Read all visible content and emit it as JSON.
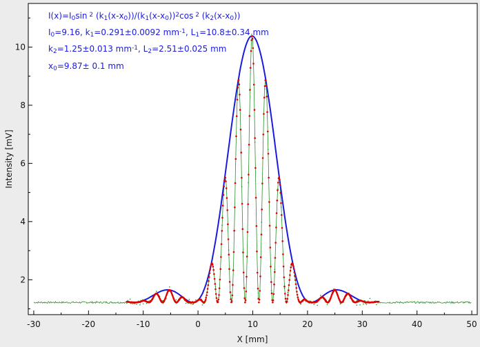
{
  "chart_data": {
    "type": "scatter",
    "xlabel": "X [mm]",
    "ylabel": "Intensity [mV]",
    "xlim": [
      -31,
      51
    ],
    "ylim": [
      0.8,
      11.5
    ],
    "xticks": [
      -30,
      -20,
      -10,
      0,
      10,
      20,
      30,
      40,
      50
    ],
    "xtick_labels": [
      "-30",
      "-20",
      "-10",
      "0",
      "10",
      "20",
      "30",
      "40",
      "50"
    ],
    "yticks": [
      2,
      4,
      6,
      8,
      10
    ],
    "ytick_labels": [
      "2",
      "4",
      "6",
      "8",
      "10"
    ],
    "grid": false,
    "colors": {
      "fit": "#1a1adc",
      "measured": "#e00000",
      "background": "#2a8a2a",
      "annotation": "#1a1adc"
    },
    "annotation": {
      "line1": [
        {
          "t": "I(x)=I"
        },
        {
          "t": "0",
          "sub": true
        },
        {
          "t": "sin"
        },
        {
          "t": " 2",
          "sup": true
        },
        {
          "t": " (k"
        },
        {
          "t": "1",
          "sub": true
        },
        {
          "t": "(x-x"
        },
        {
          "t": "0",
          "sub": true
        },
        {
          "t": "))/(k"
        },
        {
          "t": "1",
          "sub": true
        },
        {
          "t": "(x-x"
        },
        {
          "t": "0",
          "sub": true
        },
        {
          "t": "))"
        },
        {
          "t": "2",
          "sup": true
        },
        {
          "t": "cos"
        },
        {
          "t": " 2",
          "sup": true
        },
        {
          "t": " (k"
        },
        {
          "t": "2",
          "sub": true
        },
        {
          "t": "(x-x"
        },
        {
          "t": "0",
          "sub": true
        },
        {
          "t": "))"
        }
      ],
      "line2": [
        {
          "t": "I"
        },
        {
          "t": "0",
          "sub": true
        },
        {
          "t": "=9.16,  k"
        },
        {
          "t": "1",
          "sub": true
        },
        {
          "t": "=0.291±0.0092 mm"
        },
        {
          "t": "-1",
          "sup": true
        },
        {
          "t": ",   L"
        },
        {
          "t": "1",
          "sub": true
        },
        {
          "t": "=10.8±0.34 mm"
        }
      ],
      "line3": [
        {
          "t": "k"
        },
        {
          "t": "2",
          "sub": true
        },
        {
          "t": "=1.25±0.013 mm"
        },
        {
          "t": "-1",
          "sup": true
        },
        {
          "t": ",   L"
        },
        {
          "t": "2",
          "sub": true
        },
        {
          "t": "=2.51±0.025 mm"
        }
      ],
      "line4": [
        {
          "t": "x"
        },
        {
          "t": "0",
          "sub": true
        },
        {
          "t": "=9.87±  0.1 mm"
        }
      ]
    },
    "model": {
      "I0": 9.16,
      "k1": 0.291,
      "k2": 1.25,
      "x0": 9.87,
      "offset": 1.22
    },
    "series": [
      {
        "role": "background-measurement",
        "x_range": [
          -30,
          50
        ],
        "baseline": 1.22
      },
      {
        "role": "fit",
        "x_range": [
          -13,
          33
        ],
        "curve": "envelope I0*sin^2(k1(x-x0))/(k1(x-x0))^2 + offset"
      },
      {
        "role": "measured-points",
        "x_range": [
          -13,
          33
        ],
        "curve": "I0*sin^2(k1(x-x0))/(k1(x-x0))^2*cos^2(k2(x-x0)) + offset"
      }
    ]
  }
}
